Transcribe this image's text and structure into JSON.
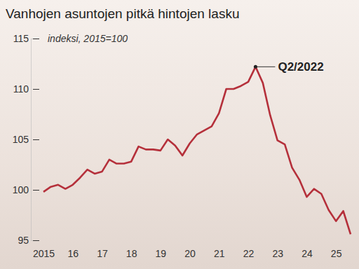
{
  "chart_data": {
    "type": "line",
    "title": "Vanhojen asuntojen pitkä hintojen lasku",
    "subtitle": "indeksi, 2015=100",
    "categories": [
      "2015",
      null,
      null,
      null,
      "16",
      null,
      null,
      null,
      "17",
      null,
      null,
      null,
      "18",
      null,
      null,
      null,
      "19",
      null,
      null,
      null,
      "20",
      null,
      null,
      null,
      "21",
      null,
      null,
      null,
      "22",
      null,
      null,
      null,
      "23",
      null,
      null,
      null,
      "24",
      null,
      null,
      null,
      "25",
      null,
      null
    ],
    "values": [
      99.8,
      100.3,
      100.5,
      100.1,
      100.5,
      101.2,
      102.0,
      101.6,
      101.8,
      103.0,
      102.6,
      102.6,
      102.8,
      104.3,
      104.0,
      104.0,
      103.9,
      105.0,
      104.4,
      103.4,
      104.6,
      105.5,
      105.9,
      106.3,
      107.6,
      110.0,
      110.0,
      110.3,
      110.7,
      112.2,
      110.6,
      107.4,
      104.9,
      104.5,
      102.2,
      101.0,
      99.3,
      100.1,
      99.6,
      98.0,
      96.9,
      97.9,
      95.6
    ],
    "color": "#b5303b",
    "ylim": [
      95,
      115
    ],
    "yticks": [
      95,
      100,
      105,
      110,
      115
    ],
    "grid": false,
    "annotations": [
      {
        "text": "Q2/2022"
      }
    ]
  }
}
